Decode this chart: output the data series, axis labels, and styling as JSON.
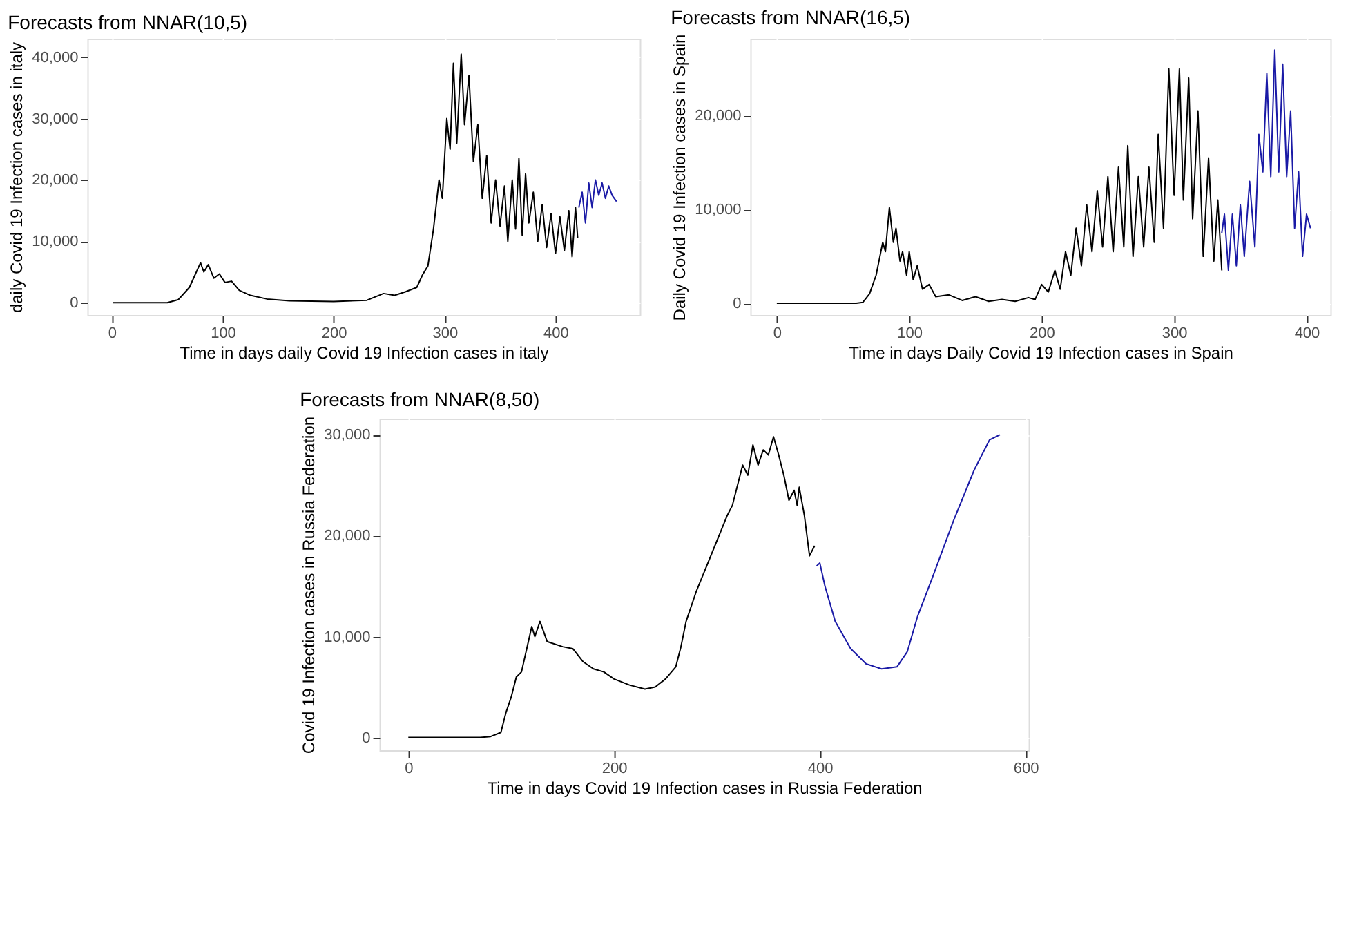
{
  "chart_data": [
    {
      "type": "line",
      "title": "Forecasts from NNAR(10,5)",
      "xlabel": "Time in days daily Covid 19 Infection cases in italy",
      "ylabel": "daily Covid 19 Infection cases in italy",
      "xlim": [
        -22,
        476
      ],
      "ylim": [
        -2000,
        43000
      ],
      "xticks": [
        0,
        100,
        200,
        300,
        400
      ],
      "yticks": [
        0,
        {
          "value": 10000,
          "label": "10,000"
        },
        {
          "value": 20000,
          "label": "20,000"
        },
        {
          "value": 30000,
          "label": "30,000"
        },
        {
          "value": 40000,
          "label": "40,000"
        }
      ],
      "grid": true,
      "line_style": "solid",
      "marker": "none",
      "series": [
        {
          "color": "#000000",
          "x": [
            1,
            50,
            60,
            70,
            80,
            83,
            87,
            92,
            97,
            102,
            108,
            115,
            125,
            140,
            160,
            200,
            230,
            245,
            255,
            265,
            275,
            280,
            285,
            290,
            295,
            298,
            302,
            305,
            308,
            311,
            315,
            318,
            322,
            326,
            330,
            334,
            338,
            342,
            346,
            350,
            354,
            357,
            361,
            364,
            367,
            370,
            373,
            376,
            380,
            384,
            388,
            392,
            396,
            400,
            404,
            408,
            412,
            415,
            418,
            420
          ],
          "values": [
            0,
            0,
            500,
            2500,
            6500,
            5000,
            6200,
            4000,
            4700,
            3300,
            3500,
            2000,
            1200,
            600,
            300,
            200,
            400,
            1500,
            1200,
            1800,
            2500,
            4500,
            6000,
            12000,
            20000,
            17000,
            30000,
            25000,
            39000,
            26000,
            40500,
            29000,
            37000,
            23000,
            29000,
            17000,
            24000,
            13000,
            20000,
            12500,
            19000,
            10000,
            20000,
            12000,
            23500,
            11000,
            21000,
            13000,
            18000,
            10000,
            16000,
            9000,
            14500,
            8000,
            14000,
            8500,
            15000,
            7500,
            15500,
            10500
          ]
        },
        {
          "color": "#1a1aa6",
          "x": [
            421,
            424,
            427,
            430,
            433,
            436,
            439,
            442,
            445,
            448,
            451,
            455
          ],
          "values": [
            15500,
            18000,
            13000,
            19500,
            15500,
            20000,
            17500,
            19500,
            17000,
            19000,
            17500,
            16500
          ]
        }
      ]
    },
    {
      "type": "line",
      "title": "Forecasts from NNAR(16,5)",
      "xlabel": "Time in days Daily Covid 19 Infection cases in Spain",
      "ylabel": "Daily Covid 19 Infection cases in Spain",
      "xlim": [
        -20,
        418
      ],
      "ylim": [
        -1250,
        28200
      ],
      "xticks": [
        0,
        100,
        200,
        300,
        400
      ],
      "yticks": [
        0,
        {
          "value": 10000,
          "label": "10,000"
        },
        {
          "value": 20000,
          "label": "20,000"
        }
      ],
      "grid": true,
      "line_style": "solid",
      "marker": "none",
      "series": [
        {
          "color": "#000000",
          "x": [
            0,
            60,
            65,
            70,
            75,
            80,
            82,
            85,
            88,
            90,
            93,
            95,
            98,
            100,
            103,
            106,
            110,
            115,
            120,
            130,
            140,
            150,
            160,
            170,
            180,
            190,
            195,
            200,
            205,
            210,
            214,
            218,
            222,
            226,
            230,
            234,
            238,
            242,
            246,
            250,
            254,
            258,
            262,
            265,
            269,
            273,
            277,
            281,
            285,
            288,
            292,
            296,
            300,
            304,
            307,
            311,
            314,
            318,
            322,
            326,
            330,
            333,
            336
          ],
          "values": [
            0,
            0,
            100,
            1000,
            3000,
            6500,
            5500,
            10200,
            6500,
            8000,
            4500,
            5500,
            3000,
            5500,
            2500,
            4000,
            1500,
            2000,
            700,
            900,
            300,
            700,
            200,
            400,
            200,
            600,
            400,
            2000,
            1200,
            3500,
            1500,
            5500,
            3000,
            8000,
            4000,
            10500,
            5500,
            12000,
            6000,
            13500,
            5500,
            14500,
            6000,
            16800,
            5000,
            13500,
            6000,
            14500,
            6500,
            18000,
            8000,
            25000,
            11500,
            25000,
            11000,
            24000,
            9000,
            20500,
            5000,
            15500,
            4500,
            11000,
            3500
          ]
        },
        {
          "color": "#1a1aa6",
          "x": [
            336,
            338,
            341,
            344,
            347,
            350,
            353,
            357,
            361,
            364,
            367,
            370,
            373,
            376,
            379,
            382,
            385,
            388,
            391,
            394,
            397,
            400,
            403
          ],
          "values": [
            7500,
            9500,
            3500,
            9500,
            4000,
            10500,
            5000,
            13000,
            6000,
            18000,
            14000,
            24500,
            13500,
            27000,
            14000,
            25500,
            13500,
            20500,
            8000,
            14000,
            5000,
            9500,
            8000
          ]
        }
      ]
    },
    {
      "type": "line",
      "title": "Forecasts from NNAR(8,50)",
      "xlabel": "Time in days Covid 19 Infection cases in Russia Federation",
      "ylabel": "Covid 19 Infection cases in Russia Federation",
      "xlim": [
        -28,
        603
      ],
      "ylim": [
        -1260,
        31600
      ],
      "xticks": [
        0,
        200,
        400,
        600
      ],
      "yticks": [
        0,
        {
          "value": 10000,
          "label": "10,000"
        },
        {
          "value": 20000,
          "label": "20,000"
        },
        {
          "value": 30000,
          "label": "30,000"
        }
      ],
      "grid": true,
      "line_style": "solid",
      "marker": "none",
      "series": [
        {
          "color": "#000000",
          "x": [
            0,
            70,
            80,
            90,
            95,
            100,
            105,
            110,
            120,
            123,
            128,
            135,
            150,
            160,
            170,
            180,
            190,
            200,
            215,
            230,
            240,
            250,
            260,
            265,
            270,
            280,
            290,
            300,
            310,
            315,
            320,
            325,
            330,
            335,
            340,
            345,
            350,
            355,
            360,
            365,
            370,
            375,
            378,
            380,
            385,
            390,
            395
          ],
          "values": [
            0,
            0,
            100,
            500,
            2500,
            4000,
            6000,
            6500,
            11000,
            10000,
            11500,
            9500,
            9000,
            8800,
            7500,
            6800,
            6500,
            5800,
            5200,
            4800,
            5000,
            5800,
            7000,
            9000,
            11500,
            14500,
            17000,
            19500,
            22000,
            23000,
            25000,
            27000,
            26000,
            29000,
            27000,
            28500,
            28000,
            29800,
            28000,
            26000,
            23500,
            24500,
            23000,
            24800,
            22000,
            18000,
            19000
          ]
        },
        {
          "color": "#1a1aa6",
          "x": [
            397,
            400,
            405,
            415,
            430,
            445,
            460,
            475,
            485,
            495,
            510,
            530,
            550,
            565,
            575
          ],
          "values": [
            17000,
            17300,
            15000,
            11500,
            8800,
            7300,
            6800,
            7000,
            8500,
            12000,
            16000,
            21500,
            26500,
            29500,
            30000
          ]
        }
      ]
    }
  ]
}
